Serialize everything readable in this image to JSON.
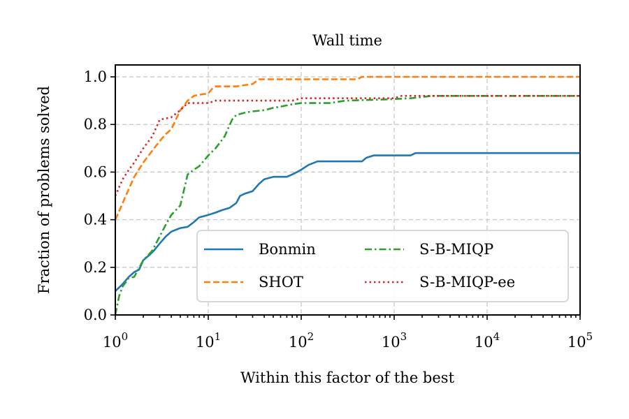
{
  "chart_data": {
    "type": "line",
    "title": "Wall time",
    "xlabel": "Within this factor of the best",
    "ylabel": "Fraction of problems solved",
    "xscale": "log",
    "xlim": [
      1,
      100000
    ],
    "ylim": [
      0,
      1.05
    ],
    "xticks": [
      {
        "base": "10",
        "exp": "0",
        "value": 1
      },
      {
        "base": "10",
        "exp": "1",
        "value": 10
      },
      {
        "base": "10",
        "exp": "2",
        "value": 100
      },
      {
        "base": "10",
        "exp": "3",
        "value": 1000
      },
      {
        "base": "10",
        "exp": "4",
        "value": 10000
      },
      {
        "base": "10",
        "exp": "5",
        "value": 100000
      }
    ],
    "yticks": [
      {
        "label": "0.0",
        "value": 0
      },
      {
        "label": "0.2",
        "value": 0.2
      },
      {
        "label": "0.4",
        "value": 0.4
      },
      {
        "label": "0.6",
        "value": 0.6
      },
      {
        "label": "0.8",
        "value": 0.8
      },
      {
        "label": "1.0",
        "value": 1.0
      }
    ],
    "grid": true,
    "legend": {
      "position": "lower-right",
      "columns": 2
    },
    "series": [
      {
        "name": "Bonmin",
        "color": "#1f77b4",
        "dash": "solid",
        "points": [
          [
            1,
            0.1
          ],
          [
            1.2,
            0.13
          ],
          [
            1.4,
            0.16
          ],
          [
            1.6,
            0.18
          ],
          [
            1.8,
            0.19
          ],
          [
            2,
            0.23
          ],
          [
            2.3,
            0.25
          ],
          [
            2.6,
            0.27
          ],
          [
            3,
            0.3
          ],
          [
            3.5,
            0.33
          ],
          [
            4,
            0.35
          ],
          [
            5,
            0.365
          ],
          [
            6,
            0.37
          ],
          [
            7,
            0.39
          ],
          [
            8,
            0.41
          ],
          [
            9,
            0.415
          ],
          [
            10,
            0.42
          ],
          [
            12,
            0.43
          ],
          [
            14,
            0.44
          ],
          [
            17,
            0.45
          ],
          [
            20,
            0.47
          ],
          [
            22,
            0.5
          ],
          [
            25,
            0.51
          ],
          [
            30,
            0.52
          ],
          [
            35,
            0.55
          ],
          [
            40,
            0.57
          ],
          [
            50,
            0.58
          ],
          [
            60,
            0.58
          ],
          [
            70,
            0.58
          ],
          [
            80,
            0.59
          ],
          [
            90,
            0.6
          ],
          [
            100,
            0.61
          ],
          [
            120,
            0.63
          ],
          [
            150,
            0.645
          ],
          [
            200,
            0.645
          ],
          [
            300,
            0.645
          ],
          [
            450,
            0.645
          ],
          [
            500,
            0.66
          ],
          [
            600,
            0.67
          ],
          [
            1000,
            0.67
          ],
          [
            1500,
            0.67
          ],
          [
            1700,
            0.68
          ],
          [
            100000,
            0.68
          ]
        ]
      },
      {
        "name": "SHOT",
        "color": "#ff7f0e",
        "dash": "dashed",
        "points": [
          [
            1,
            0.4
          ],
          [
            1.2,
            0.47
          ],
          [
            1.4,
            0.53
          ],
          [
            1.6,
            0.58
          ],
          [
            2,
            0.64
          ],
          [
            2.5,
            0.69
          ],
          [
            3,
            0.73
          ],
          [
            3.5,
            0.76
          ],
          [
            4,
            0.78
          ],
          [
            5,
            0.86
          ],
          [
            6,
            0.9
          ],
          [
            7,
            0.92
          ],
          [
            8,
            0.925
          ],
          [
            10,
            0.93
          ],
          [
            11,
            0.95
          ],
          [
            12,
            0.96
          ],
          [
            20,
            0.96
          ],
          [
            30,
            0.97
          ],
          [
            35,
            0.99
          ],
          [
            100,
            0.99
          ],
          [
            400,
            0.99
          ],
          [
            450,
            1.0
          ],
          [
            100000,
            1.0
          ]
        ]
      },
      {
        "name": "S-B-MIQP",
        "color": "#2ca02c",
        "dash": "dashdot",
        "points": [
          [
            1,
            0.0
          ],
          [
            1.1,
            0.08
          ],
          [
            1.2,
            0.12
          ],
          [
            1.4,
            0.155
          ],
          [
            1.6,
            0.16
          ],
          [
            2,
            0.23
          ],
          [
            2.5,
            0.27
          ],
          [
            3,
            0.33
          ],
          [
            3.5,
            0.38
          ],
          [
            4,
            0.42
          ],
          [
            5,
            0.46
          ],
          [
            6,
            0.59
          ],
          [
            7,
            0.61
          ],
          [
            8,
            0.625
          ],
          [
            10,
            0.67
          ],
          [
            12,
            0.7
          ],
          [
            15,
            0.75
          ],
          [
            18,
            0.82
          ],
          [
            20,
            0.84
          ],
          [
            25,
            0.85
          ],
          [
            30,
            0.855
          ],
          [
            40,
            0.86
          ],
          [
            50,
            0.87
          ],
          [
            60,
            0.875
          ],
          [
            80,
            0.885
          ],
          [
            100,
            0.89
          ],
          [
            200,
            0.89
          ],
          [
            300,
            0.9
          ],
          [
            800,
            0.905
          ],
          [
            1500,
            0.91
          ],
          [
            2000,
            0.915
          ],
          [
            2500,
            0.92
          ],
          [
            100000,
            0.92
          ]
        ]
      },
      {
        "name": "S-B-MIQP-ee",
        "color": "#d62728",
        "dash": "dotted",
        "points": [
          [
            1,
            0.5
          ],
          [
            1.2,
            0.57
          ],
          [
            1.4,
            0.61
          ],
          [
            1.6,
            0.64
          ],
          [
            2,
            0.7
          ],
          [
            2.5,
            0.75
          ],
          [
            3,
            0.82
          ],
          [
            4,
            0.83
          ],
          [
            5,
            0.86
          ],
          [
            6,
            0.89
          ],
          [
            8,
            0.89
          ],
          [
            10,
            0.89
          ],
          [
            12,
            0.9
          ],
          [
            50,
            0.9
          ],
          [
            80,
            0.9
          ],
          [
            100,
            0.91
          ],
          [
            1000,
            0.91
          ],
          [
            1200,
            0.92
          ],
          [
            100000,
            0.92
          ]
        ]
      }
    ]
  }
}
